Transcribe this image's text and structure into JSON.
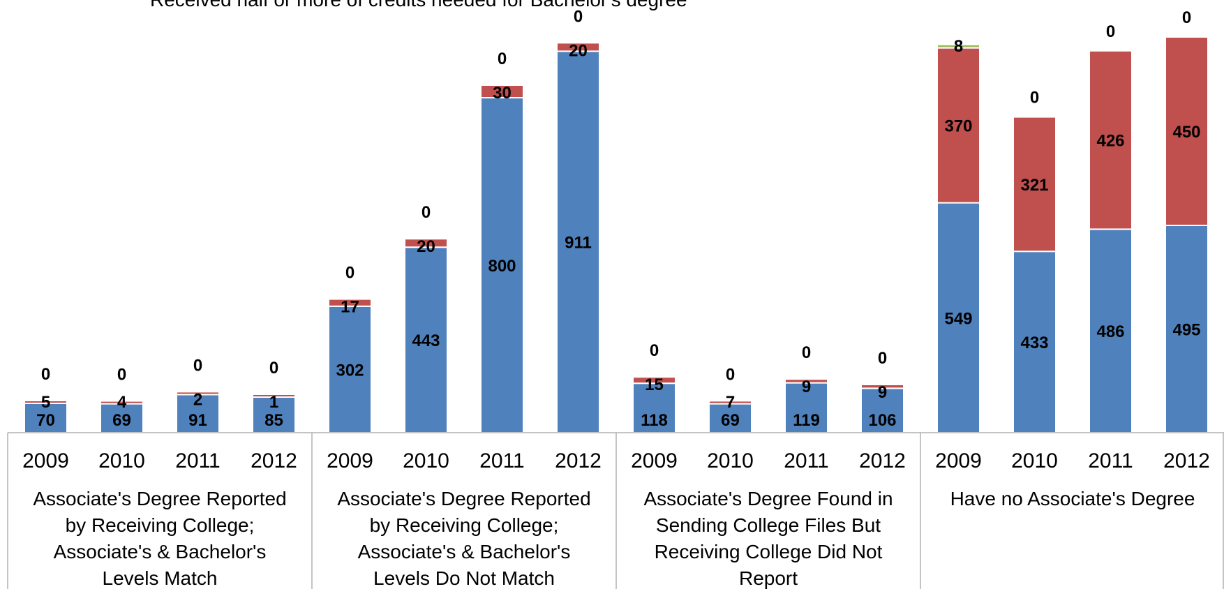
{
  "chart_data": {
    "type": "bar",
    "stacked": true,
    "legend": {
      "placement": "top-left",
      "visible_entry": "Received half or more of credits needed for Bachelor's degree"
    },
    "groups": [
      {
        "label_lines": [
          "Associate's Degree Reported",
          "by Receiving College;",
          "Associate's & Bachelor's",
          "Levels Match"
        ],
        "categories": [
          "2009",
          "2010",
          "2011",
          "2012"
        ]
      },
      {
        "label_lines": [
          "Associate's Degree Reported",
          "by Receiving College;",
          "Associate's & Bachelor's",
          "Levels Do Not Match"
        ],
        "categories": [
          "2009",
          "2010",
          "2011",
          "2012"
        ]
      },
      {
        "label_lines": [
          "Associate's Degree Found in",
          "Sending College Files But",
          "Receiving College Did Not",
          "Report"
        ],
        "categories": [
          "2009",
          "2010",
          "2011",
          "2012"
        ]
      },
      {
        "label_lines": [
          "Have no Associate's Degree"
        ],
        "categories": [
          "2009",
          "2010",
          "2011",
          "2012"
        ]
      }
    ],
    "series": [
      {
        "color": "#4F81BD",
        "values": [
          70,
          69,
          91,
          85,
          302,
          443,
          800,
          911,
          118,
          69,
          119,
          106,
          549,
          433,
          486,
          495
        ]
      },
      {
        "color": "#C0504D",
        "values": [
          5,
          4,
          2,
          1,
          17,
          20,
          30,
          20,
          15,
          7,
          9,
          9,
          370,
          321,
          426,
          450
        ]
      },
      {
        "color": "#9BBB59",
        "values": [
          0,
          0,
          0,
          0,
          0,
          0,
          0,
          0,
          0,
          0,
          0,
          0,
          8,
          0,
          0,
          0
        ]
      }
    ],
    "ylim": [
      0,
      1000
    ],
    "grid": false
  }
}
